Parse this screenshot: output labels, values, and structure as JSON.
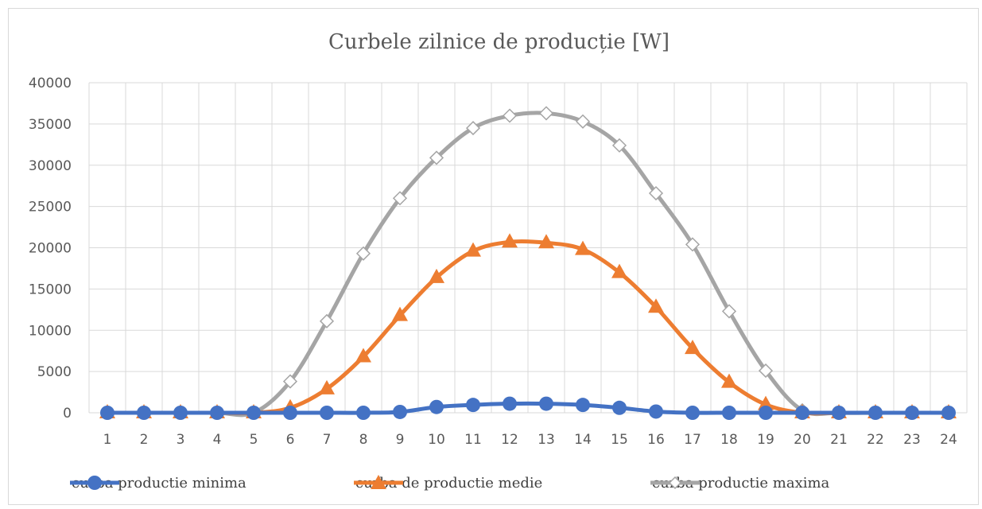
{
  "chart_data": {
    "type": "line",
    "title": "Curbele zilnice de producție [W]",
    "xlabel": "",
    "ylabel": "",
    "categories": [
      "1",
      "2",
      "3",
      "4",
      "5",
      "6",
      "7",
      "8",
      "9",
      "10",
      "11",
      "12",
      "13",
      "14",
      "15",
      "16",
      "17",
      "18",
      "19",
      "20",
      "21",
      "22",
      "23",
      "24"
    ],
    "ylim": [
      0,
      40000
    ],
    "yticks": [
      "0",
      "5000",
      "10000",
      "15000",
      "20000",
      "25000",
      "30000",
      "35000",
      "40000"
    ],
    "grid": true,
    "legend_position": "bottom",
    "series": [
      {
        "name": "curba productie minima",
        "color": "#4472c4",
        "marker": "circle",
        "values": [
          0,
          0,
          0,
          0,
          0,
          0,
          0,
          0,
          100,
          700,
          950,
          1100,
          1100,
          950,
          600,
          150,
          0,
          0,
          0,
          0,
          0,
          0,
          0,
          0
        ]
      },
      {
        "name": "curba de productie medie",
        "color": "#ed7d31",
        "marker": "triangle",
        "values": [
          0,
          0,
          0,
          0,
          0,
          600,
          2900,
          6800,
          11800,
          16400,
          19600,
          20700,
          20600,
          19800,
          17000,
          12800,
          7800,
          3700,
          1000,
          0,
          0,
          0,
          0,
          0
        ]
      },
      {
        "name": "curba productie maxima",
        "color": "#a5a5a5",
        "marker": "diamond-open",
        "values": [
          0,
          0,
          0,
          0,
          0,
          3800,
          11100,
          19300,
          26000,
          30900,
          34500,
          36000,
          36300,
          35300,
          32400,
          26600,
          20400,
          12300,
          5100,
          300,
          0,
          0,
          0,
          0
        ]
      }
    ]
  }
}
